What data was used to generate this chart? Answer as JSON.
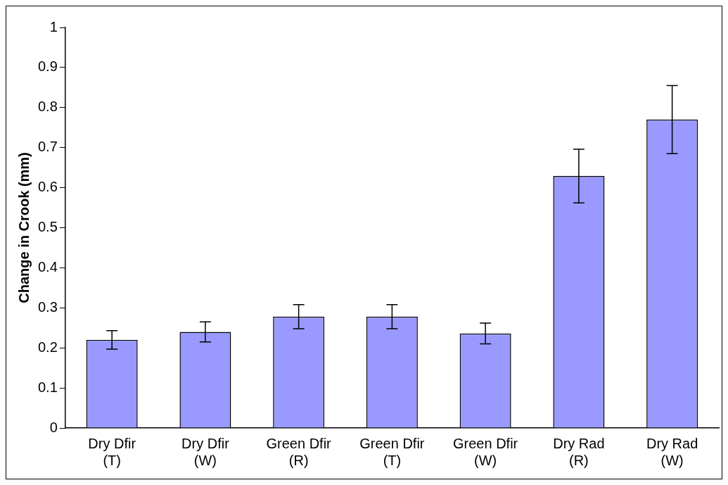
{
  "chart_data": {
    "type": "bar",
    "ylabel": "Change in Crook (mm)",
    "categories": [
      "Dry Dfir (T)",
      "Dry Dfir (W)",
      "Green Dfir (R)",
      "Green Dfir (T)",
      "Green Dfir (W)",
      "Dry Rad (R)",
      "Dry Rad (W)"
    ],
    "values": [
      0.22,
      0.24,
      0.278,
      0.278,
      0.236,
      0.629,
      0.77
    ],
    "errors": [
      0.023,
      0.025,
      0.03,
      0.03,
      0.026,
      0.067,
      0.085
    ],
    "color": "#9999ff",
    "ylim": [
      0,
      1
    ],
    "yticks": [
      0,
      0.1,
      0.2,
      0.3,
      0.4,
      0.5,
      0.6,
      0.7,
      0.8,
      0.9,
      1
    ],
    "grid": false,
    "legend": false
  }
}
